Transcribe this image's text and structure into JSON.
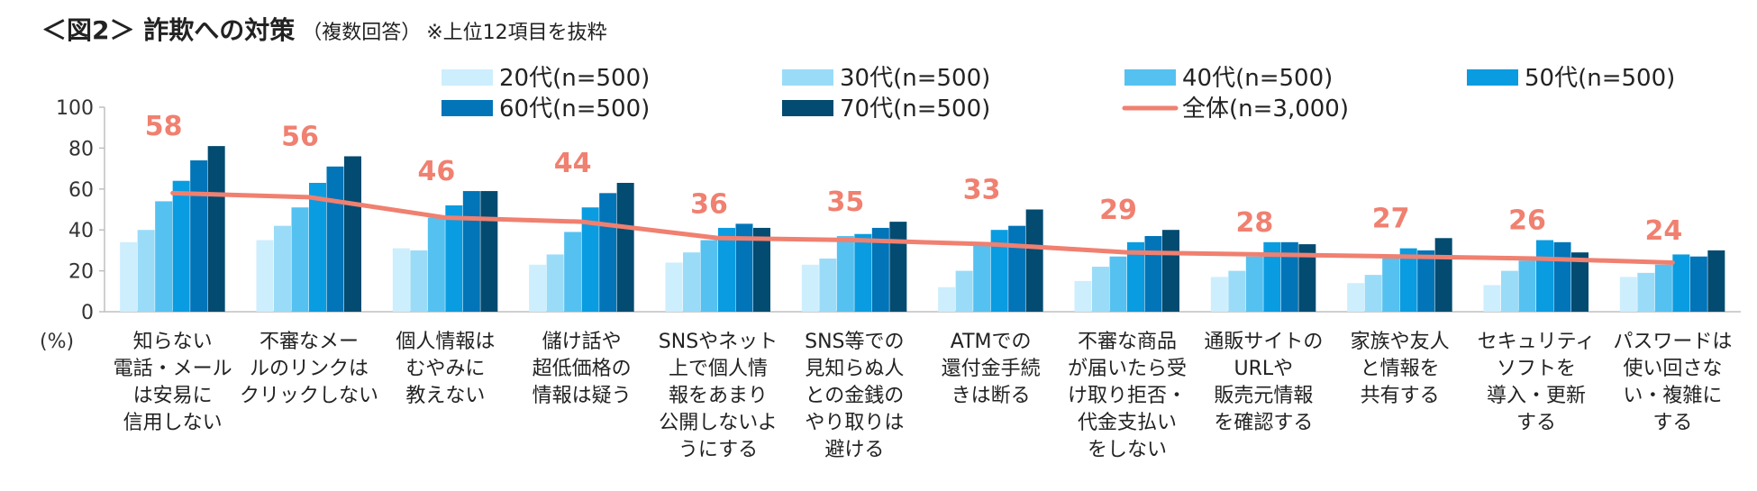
{
  "title": {
    "main": "＜図2＞ 詐欺への対策",
    "sub": "（複数回答）",
    "note": "※上位12項目を抜粋"
  },
  "chart_data": {
    "type": "bar",
    "ylabel": "(%)",
    "ylim": [
      0,
      100
    ],
    "yticks": [
      0,
      20,
      40,
      60,
      80,
      100
    ],
    "grid": false,
    "legend_position": "top",
    "categories": [
      [
        "知らない",
        "電話・メール",
        "は安易に",
        "信用しない"
      ],
      [
        "不審なメー",
        "ルのリンクは",
        "クリックしない"
      ],
      [
        "個人情報は",
        "むやみに",
        "教えない"
      ],
      [
        "儲け話や",
        "超低価格の",
        "情報は疑う"
      ],
      [
        "SNSやネット",
        "上で個人情",
        "報をあまり",
        "公開しないよ",
        "うにする"
      ],
      [
        "SNS等での",
        "見知らぬ人",
        "との金銭の",
        "やり取りは",
        "避ける"
      ],
      [
        "ATMでの",
        "還付金手続",
        "きは断る"
      ],
      [
        "不審な商品",
        "が届いたら受",
        "け取り拒否・",
        "代金支払い",
        "をしない"
      ],
      [
        "通販サイトの",
        "URLや",
        "販売元情報",
        "を確認する"
      ],
      [
        "家族や友人",
        "と情報を",
        "共有する"
      ],
      [
        "セキュリティ",
        "ソフトを",
        "導入・更新",
        "する"
      ],
      [
        "パスワードは",
        "使い回さな",
        "い・複雑に",
        "する"
      ]
    ],
    "series": [
      {
        "name": "20代(n=500)",
        "color": "#cdeefd",
        "values": [
          34,
          35,
          31,
          23,
          24,
          23,
          12,
          15,
          17,
          14,
          13,
          17
        ]
      },
      {
        "name": "30代(n=500)",
        "color": "#9adcf8",
        "values": [
          40,
          42,
          30,
          28,
          29,
          26,
          20,
          22,
          20,
          18,
          20,
          19
        ]
      },
      {
        "name": "40代(n=500)",
        "color": "#55c1f0",
        "values": [
          54,
          51,
          46,
          39,
          35,
          37,
          33,
          27,
          27,
          26,
          25,
          23
        ]
      },
      {
        "name": "50代(n=500)",
        "color": "#0a9ce0",
        "values": [
          64,
          63,
          52,
          51,
          41,
          38,
          40,
          34,
          34,
          31,
          35,
          28
        ]
      },
      {
        "name": "60代(n=500)",
        "color": "#0274b8",
        "values": [
          74,
          71,
          59,
          58,
          43,
          41,
          42,
          37,
          34,
          30,
          34,
          27
        ]
      },
      {
        "name": "70代(n=500)",
        "color": "#034b70",
        "values": [
          81,
          76,
          59,
          63,
          41,
          44,
          50,
          40,
          33,
          36,
          29,
          30
        ]
      }
    ],
    "line_series": {
      "name": "全体(n=3,000)",
      "color": "#f08070",
      "values": [
        58,
        56,
        46,
        44,
        36,
        35,
        33,
        29,
        28,
        27,
        26,
        24
      ],
      "labels": [
        "58",
        "56",
        "46",
        "44",
        "36",
        "35",
        "33",
        "29",
        "28",
        "27",
        "26",
        "24"
      ]
    }
  }
}
